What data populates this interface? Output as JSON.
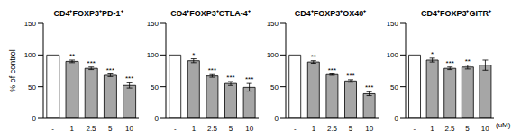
{
  "chart_data": [
    {
      "type": "bar",
      "title": "CD4⁺FOXP3⁺PD-1⁺",
      "categories": [
        "-",
        "1",
        "2.5",
        "5",
        "10"
      ],
      "values": [
        100,
        90,
        79,
        68,
        52
      ],
      "errors": [
        0,
        2,
        2,
        2,
        4
      ],
      "annotations": [
        null,
        "**",
        "***",
        "***",
        "***"
      ],
      "colors": [
        "#ffffff",
        "#a6a6a6",
        "#a6a6a6",
        "#a6a6a6",
        "#a6a6a6"
      ],
      "ylim": [
        0,
        150
      ],
      "yticks": [
        0,
        50,
        100,
        150
      ],
      "grid": false,
      "y_label": "% of control"
    },
    {
      "type": "bar",
      "title": "CD4⁺FOXP3⁺CTLA-4⁺",
      "categories": [
        "-",
        "1",
        "2.5",
        "5",
        "10"
      ],
      "values": [
        100,
        91,
        67,
        55,
        49
      ],
      "errors": [
        0,
        3,
        2,
        3,
        6
      ],
      "annotations": [
        null,
        "*",
        "***",
        "***",
        "***"
      ],
      "colors": [
        "#ffffff",
        "#a6a6a6",
        "#a6a6a6",
        "#a6a6a6",
        "#a6a6a6"
      ],
      "ylim": [
        0,
        150
      ],
      "yticks": [
        0,
        50,
        100,
        150
      ],
      "grid": false
    },
    {
      "type": "bar",
      "title": "CD4⁺FOXP3⁺OX40⁺",
      "categories": [
        "-",
        "1",
        "2.5",
        "5",
        "10"
      ],
      "values": [
        100,
        89,
        69,
        59,
        39
      ],
      "errors": [
        0,
        2,
        1,
        2,
        3
      ],
      "annotations": [
        null,
        "**",
        "***",
        "***",
        "***"
      ],
      "colors": [
        "#ffffff",
        "#a6a6a6",
        "#a6a6a6",
        "#a6a6a6",
        "#a6a6a6"
      ],
      "ylim": [
        0,
        150
      ],
      "yticks": [
        0,
        50,
        100,
        150
      ],
      "grid": false
    },
    {
      "type": "bar",
      "title": "CD4⁺FOXP3⁺GITR⁺",
      "categories": [
        "-",
        "1",
        "2.5",
        "5",
        "10"
      ],
      "values": [
        100,
        92,
        79,
        81,
        84
      ],
      "errors": [
        0,
        3,
        2,
        3,
        8
      ],
      "annotations": [
        null,
        "*",
        "***",
        "**",
        null
      ],
      "colors": [
        "#ffffff",
        "#a6a6a6",
        "#a6a6a6",
        "#a6a6a6",
        "#a6a6a6"
      ],
      "ylim": [
        0,
        150
      ],
      "yticks": [
        0,
        50,
        100,
        150
      ],
      "grid": false,
      "x_label": "(uM)"
    }
  ]
}
